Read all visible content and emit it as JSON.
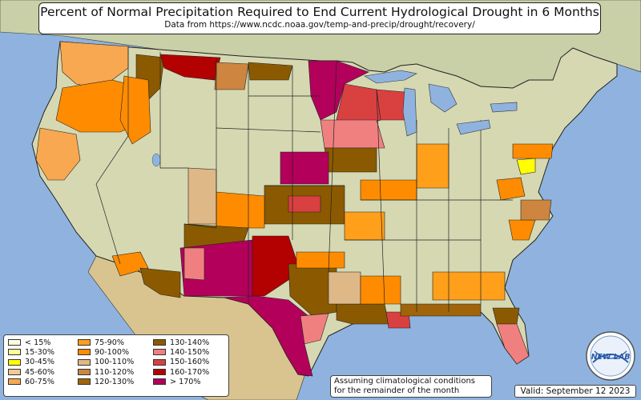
{
  "title": "Percent of Normal Precipitation Required to End Current Hydrological Drought in 6 Months",
  "subtitle": "Data from https://www.ncdc.noaa.gov/temp-and-precip/drought/recovery/",
  "note_line1": "Assuming climatological conditions",
  "note_line2": "for the remainder of the month",
  "valid": "Valid: September 12 2023",
  "logo_text": "NEW LAB",
  "colors": {
    "ocean": "#8fb3de",
    "land": "#d6d8b2",
    "boundary": "#222222"
  },
  "legend": {
    "columns": [
      [
        {
          "label": "< 15%",
          "color": "#ffffe0"
        },
        {
          "label": "15-30%",
          "color": "#ffff99"
        },
        {
          "label": "30-45%",
          "color": "#ffff00"
        },
        {
          "label": "45-60%",
          "color": "#f2c898"
        },
        {
          "label": "60-75%",
          "color": "#f8a850"
        }
      ],
      [
        {
          "label": "75-90%",
          "color": "#ff9f1a"
        },
        {
          "label": "90-100%",
          "color": "#ff8c00"
        },
        {
          "label": "100-110%",
          "color": "#deb887"
        },
        {
          "label": "110-120%",
          "color": "#cd853f"
        },
        {
          "label": "120-130%",
          "color": "#a0650a"
        }
      ],
      [
        {
          "label": "130-140%",
          "color": "#8b5a00"
        },
        {
          "label": "140-150%",
          "color": "#f08080"
        },
        {
          "label": "150-160%",
          "color": "#d94040"
        },
        {
          "label": "160-170%",
          "color": "#b30000"
        },
        {
          "label": "> 170%",
          "color": "#b3005a"
        }
      ]
    ]
  }
}
